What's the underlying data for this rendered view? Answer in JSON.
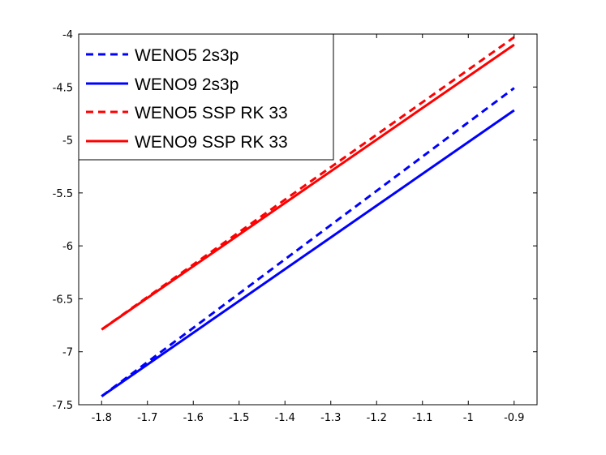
{
  "chart_data": {
    "type": "line",
    "title": "",
    "xlabel": "",
    "ylabel": "",
    "xlim": [
      -1.85,
      -0.85
    ],
    "ylim": [
      -7.5,
      -4
    ],
    "xticks": [
      -1.8,
      -1.7,
      -1.6,
      -1.5,
      -1.4,
      -1.3,
      -1.2,
      -1.1,
      -1,
      -0.9
    ],
    "xtick_labels": [
      "-1.8",
      "-1.7",
      "-1.6",
      "-1.5",
      "-1.4",
      "-1.3",
      "-1.2",
      "-1.1",
      "-1",
      "-0.9"
    ],
    "yticks": [
      -7.5,
      -7,
      -6.5,
      -6,
      -5.5,
      -5,
      -4.5,
      -4
    ],
    "ytick_labels": [
      "-7.5",
      "-7",
      "-6.5",
      "-6",
      "-5.5",
      "-5",
      "-4.5",
      "-4"
    ],
    "grid": false,
    "legend_position": "top-left",
    "series": [
      {
        "name": "WENO5 2s3p",
        "color": "#0000ff",
        "dash": true,
        "x": [
          -1.8,
          -0.9
        ],
        "y": [
          -7.42,
          -4.51
        ]
      },
      {
        "name": "WENO9 2s3p",
        "color": "#0000ff",
        "dash": false,
        "x": [
          -1.8,
          -0.9
        ],
        "y": [
          -7.42,
          -4.72
        ]
      },
      {
        "name": "WENO5 SSP RK 33",
        "color": "#ff0000",
        "dash": true,
        "x": [
          -1.8,
          -0.9
        ],
        "y": [
          -6.79,
          -4.03
        ]
      },
      {
        "name": "WENO9 SSP RK 33",
        "color": "#ff0000",
        "dash": false,
        "x": [
          -1.8,
          -0.9
        ],
        "y": [
          -6.79,
          -4.1
        ]
      }
    ]
  }
}
